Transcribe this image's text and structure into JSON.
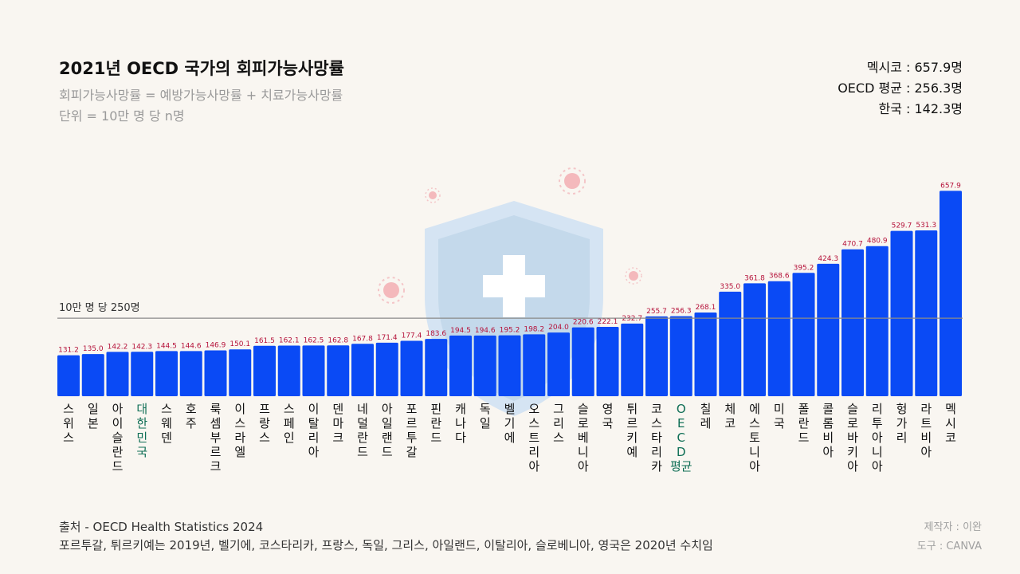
{
  "header": {
    "title": "2021년 OECD 국가의 회피가능사망률",
    "subtitle": "회피가능사망률 = 예방가능사망률 + 치료가능사망률",
    "unit": "단위 = 10만 명 당 n명"
  },
  "stats": {
    "mexico": "멕시코 : 657.9명",
    "oecd": "OECD 평균 : 256.3명",
    "korea": "한국 : 142.3명"
  },
  "reference_line_label": "10만 명 당 250명",
  "footer": {
    "source": "출처 - OECD Health Statistics 2024",
    "note": "포르투갈, 튀르키예는 2019년, 벨기에, 코스타리카, 프랑스, 독일, 그리스, 아일랜드, 이탈리아, 슬로베니아, 영국은 2020년 수치임"
  },
  "credits": {
    "author": "제작자 : 이완",
    "tool": "도구 : CANVA"
  },
  "colors": {
    "bar": "#0a4af5",
    "value_label": "#b5123a",
    "highlight_label": "#0e6e55",
    "reference_line": "#8a8a8a",
    "shield": "#c9dff3",
    "virus": "#f4b9bc"
  },
  "chart_data": {
    "type": "bar",
    "title": "2021년 OECD 국가의 회피가능사망률",
    "xlabel": "",
    "ylabel": "10만 명 당 명",
    "ylim": [
      0,
      700
    ],
    "reference_line": {
      "value": 250,
      "label": "10만 명 당 250명"
    },
    "highlighted": [
      "대한민국",
      "OECD평균"
    ],
    "categories": [
      "스위스",
      "일본",
      "아이슬란드",
      "대한민국",
      "스웨덴",
      "호주",
      "룩셈부르크",
      "이스라엘",
      "프랑스",
      "스페인",
      "이탈리아",
      "덴마크",
      "네덜란드",
      "아일랜드",
      "포르투갈",
      "핀란드",
      "캐나다",
      "독일",
      "벨기에",
      "오스트리아",
      "그리스",
      "슬로베니아",
      "영국",
      "튀르키예",
      "코스타리카",
      "OECD평균",
      "칠레",
      "체코",
      "에스토니아",
      "미국",
      "폴란드",
      "콜롬비아",
      "슬로바키아",
      "리투아니아",
      "헝가리",
      "라트비아",
      "멕시코"
    ],
    "values": [
      131.2,
      135.0,
      142.2,
      142.3,
      144.5,
      144.6,
      146.9,
      150.1,
      161.5,
      162.1,
      162.5,
      162.8,
      167.8,
      171.4,
      177.4,
      183.6,
      194.5,
      194.6,
      195.2,
      198.2,
      204.0,
      220.6,
      222.1,
      232.7,
      255.7,
      256.3,
      268.1,
      335.0,
      361.8,
      368.6,
      395.2,
      424.3,
      470.7,
      480.9,
      529.7,
      531.3,
      657.9
    ],
    "value_labels": [
      "131.2",
      "135.0",
      "142.2",
      "142.3",
      "144.5",
      "144.6",
      "146.9",
      "150.1",
      "161.5",
      "162.1",
      "162.5",
      "162.8",
      "167.8",
      "171.4",
      "177.4",
      "183.6",
      "194.5",
      "194.6",
      "195.2",
      "198.2",
      "204.0",
      "220.6",
      "222.1",
      "232.7",
      "255.7",
      "256.3",
      "268.1",
      "335.0",
      "361.8",
      "368.6",
      "395.2",
      "424.3",
      "470.7",
      "480.9",
      "529.7",
      "531.3",
      "657.9"
    ]
  }
}
